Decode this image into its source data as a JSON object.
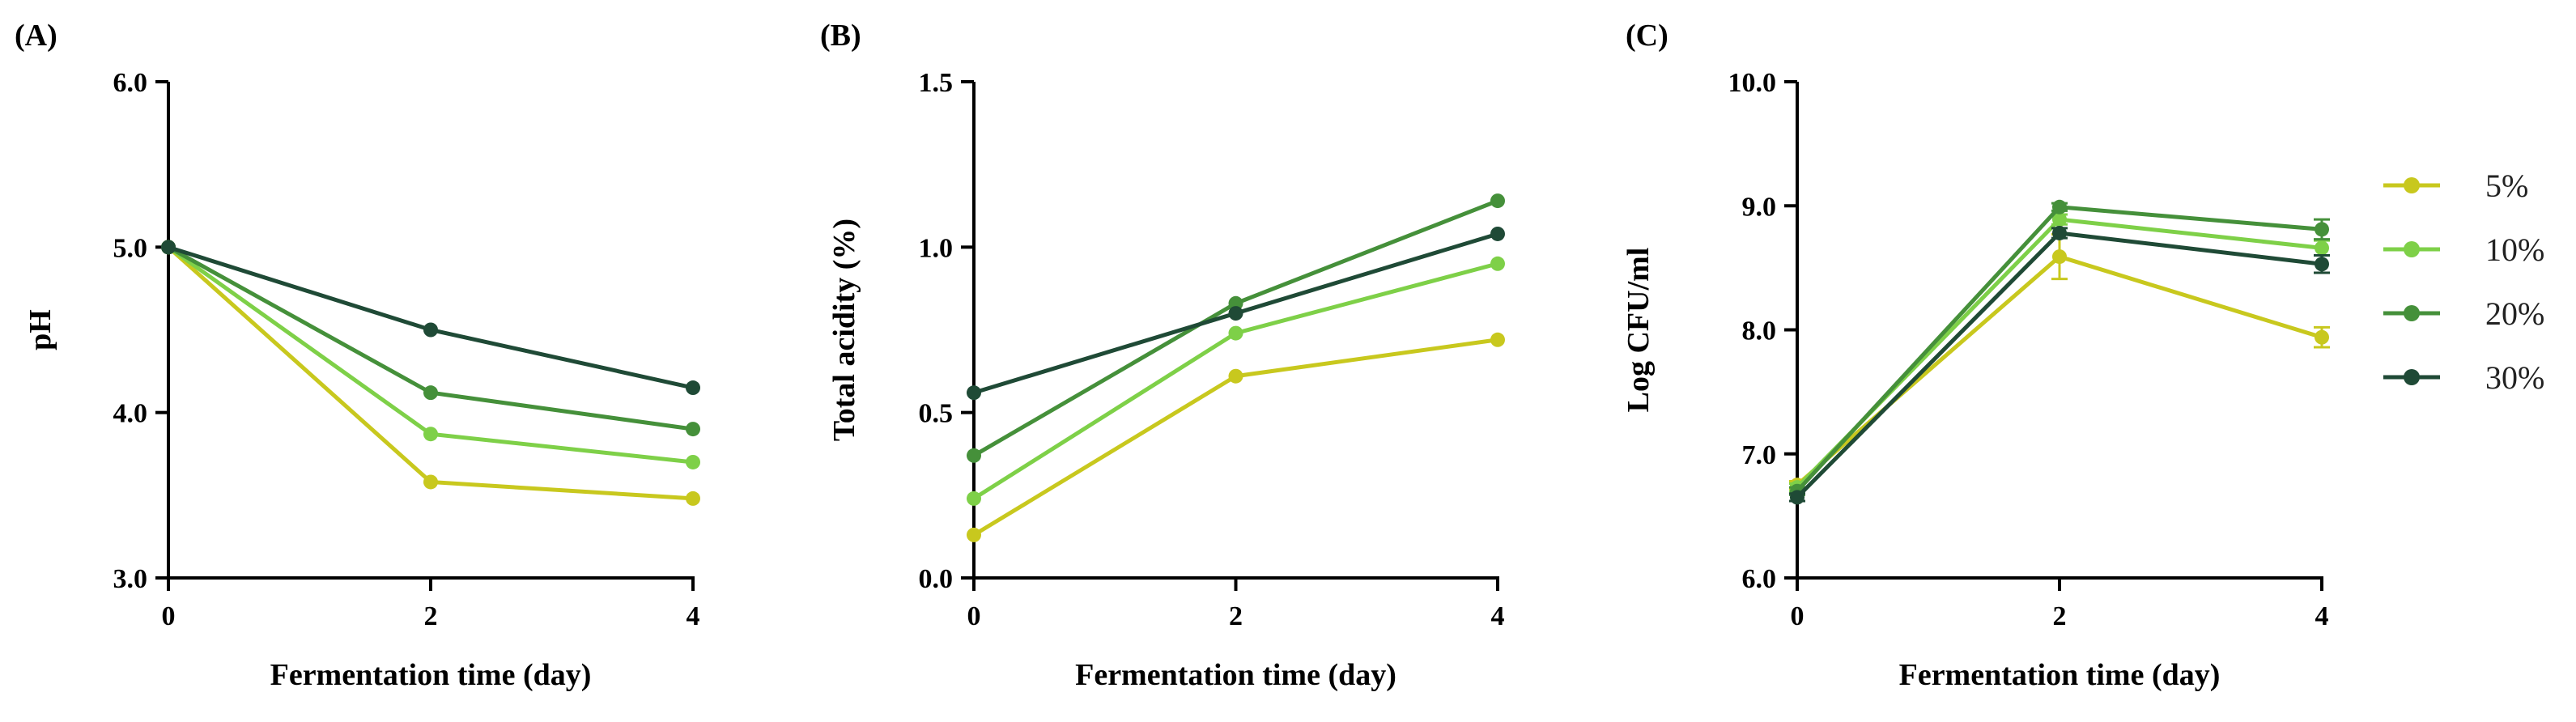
{
  "colors": {
    "5%": "#c8c81e",
    "10%": "#7ed048",
    "20%": "#45903a",
    "30%": "#1f4a36"
  },
  "legend": {
    "entries": [
      "5%",
      "10%",
      "20%",
      "30%"
    ]
  },
  "chart_data": [
    {
      "type": "line",
      "panel_label": "(A)",
      "xlabel": "Fermentation time (day)",
      "ylabel": "pH",
      "x": [
        0,
        2,
        4
      ],
      "xticks": [
        "0",
        "2",
        "4"
      ],
      "ylim": [
        3.0,
        6.0
      ],
      "yticks": [
        "3.0",
        "4.0",
        "5.0",
        "6.0"
      ],
      "series": [
        {
          "name": "5%",
          "values": [
            5.0,
            3.58,
            3.48
          ],
          "errors": [
            0,
            0,
            0
          ]
        },
        {
          "name": "10%",
          "values": [
            5.0,
            3.87,
            3.7
          ],
          "errors": [
            0,
            0,
            0
          ]
        },
        {
          "name": "20%",
          "values": [
            5.0,
            4.12,
            3.9
          ],
          "errors": [
            0,
            0,
            0
          ]
        },
        {
          "name": "30%",
          "values": [
            5.0,
            4.5,
            4.15
          ],
          "errors": [
            0,
            0,
            0
          ]
        }
      ]
    },
    {
      "type": "line",
      "panel_label": "(B)",
      "xlabel": "Fermentation time (day)",
      "ylabel": "Total acidity (%)",
      "x": [
        0,
        2,
        4
      ],
      "xticks": [
        "0",
        "2",
        "4"
      ],
      "ylim": [
        0.0,
        1.5
      ],
      "yticks": [
        "0.0",
        "0.5",
        "1.0",
        "1.5"
      ],
      "series": [
        {
          "name": "5%",
          "values": [
            0.13,
            0.61,
            0.72
          ],
          "errors": [
            0,
            0,
            0
          ]
        },
        {
          "name": "10%",
          "values": [
            0.24,
            0.74,
            0.95
          ],
          "errors": [
            0,
            0,
            0
          ]
        },
        {
          "name": "20%",
          "values": [
            0.37,
            0.83,
            1.14
          ],
          "errors": [
            0,
            0,
            0
          ]
        },
        {
          "name": "30%",
          "values": [
            0.56,
            0.8,
            1.04
          ],
          "errors": [
            0,
            0,
            0
          ]
        }
      ]
    },
    {
      "type": "line",
      "panel_label": "(C)",
      "xlabel": "Fermentation time (day)",
      "ylabel": "Log CFU/ml",
      "x": [
        0,
        2,
        4
      ],
      "xticks": [
        "0",
        "2",
        "4"
      ],
      "ylim": [
        6.0,
        10.0
      ],
      "yticks": [
        "6.0",
        "7.0",
        "8.0",
        "9.0",
        "10.0"
      ],
      "series": [
        {
          "name": "5%",
          "values": [
            6.75,
            8.59,
            7.94
          ],
          "errors": [
            0.03,
            0.18,
            0.08
          ]
        },
        {
          "name": "10%",
          "values": [
            6.73,
            8.89,
            8.66
          ],
          "errors": [
            0.03,
            0.04,
            0.06
          ]
        },
        {
          "name": "20%",
          "values": [
            6.7,
            8.99,
            8.81
          ],
          "errors": [
            0.03,
            0.03,
            0.08
          ]
        },
        {
          "name": "30%",
          "values": [
            6.65,
            8.78,
            8.53
          ],
          "errors": [
            0.03,
            0.04,
            0.07
          ]
        }
      ]
    }
  ]
}
